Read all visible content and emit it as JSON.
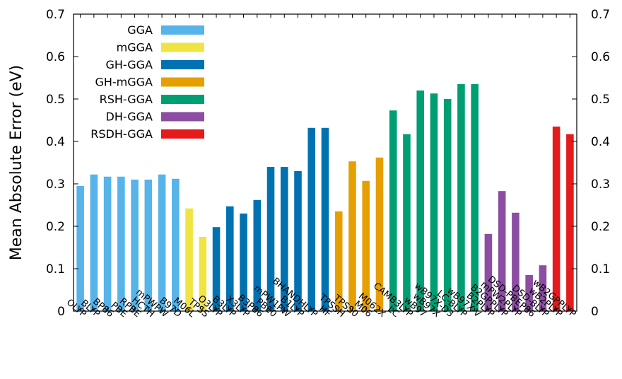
{
  "chart_data": {
    "type": "bar",
    "title": "",
    "xlabel": "",
    "ylabel": "Mean Absolute Error (eV)",
    "ylim": [
      0,
      0.7
    ],
    "yticks": [
      "0",
      "0.1",
      "0.2",
      "0.3",
      "0.4",
      "0.5",
      "0.6",
      "0.7"
    ],
    "right_axis": true,
    "grid": false,
    "legend_position": "top-left",
    "groups": [
      {
        "name": "GGA",
        "color": "#56b4e9",
        "categories": [
          "OLYP",
          "BLYP",
          "BP86",
          "PBE",
          "RPBE",
          "HCTH",
          "mPWPW",
          "B97D"
        ],
        "values": [
          0.295,
          0.322,
          0.317,
          0.317,
          0.31,
          0.31,
          0.322,
          0.312
        ]
      },
      {
        "name": "mGGA",
        "color": "#f0e442",
        "categories": [
          "M06L",
          "TPSS"
        ],
        "values": [
          0.242,
          0.175
        ]
      },
      {
        "name": "GH-GGA",
        "color": "#0072b2",
        "categories": [
          "O3LYP",
          "B3LYP",
          "X3LYP",
          "B3P86",
          "PBE0",
          "mPW1PW",
          "B1LYP",
          "BHANDHLYP",
          "HF"
        ],
        "values": [
          0.198,
          0.247,
          0.23,
          0.262,
          0.34,
          0.34,
          0.33,
          0.432,
          0.432
        ]
      },
      {
        "name": "GH-mGGA",
        "color": "#e69f00",
        "categories": [
          "TPSSH",
          "TPSS0",
          "M06",
          "M062X"
        ],
        "values": [
          0.235,
          0.353,
          0.307,
          0.362
        ]
      },
      {
        "name": "RSH-GGA",
        "color": "#009e73",
        "categories": [
          "LC",
          "CAMB3LYP",
          "wB97",
          "wB97X",
          "wB97X-D3",
          "LC-BLYP",
          "wB97X-V"
        ],
        "values": [
          0.473,
          0.417,
          0.52,
          0.513,
          0.5,
          0.535,
          0.535
        ]
      },
      {
        "name": "DH-GGA",
        "color": "#8b4ea3",
        "categories": [
          "B2PLYP",
          "B2GPPLYP",
          "mPW2PLYP",
          "DSD-PBEP86",
          "DSD-BLYP"
        ],
        "values": [
          0.182,
          0.283,
          0.232,
          0.085,
          0.108
        ]
      },
      {
        "name": "RSDH-GGA",
        "color": "#e41a1c",
        "categories": [
          "wB2PLYP",
          "wB2GPPLYP"
        ],
        "values": [
          0.435,
          0.417
        ]
      }
    ]
  }
}
